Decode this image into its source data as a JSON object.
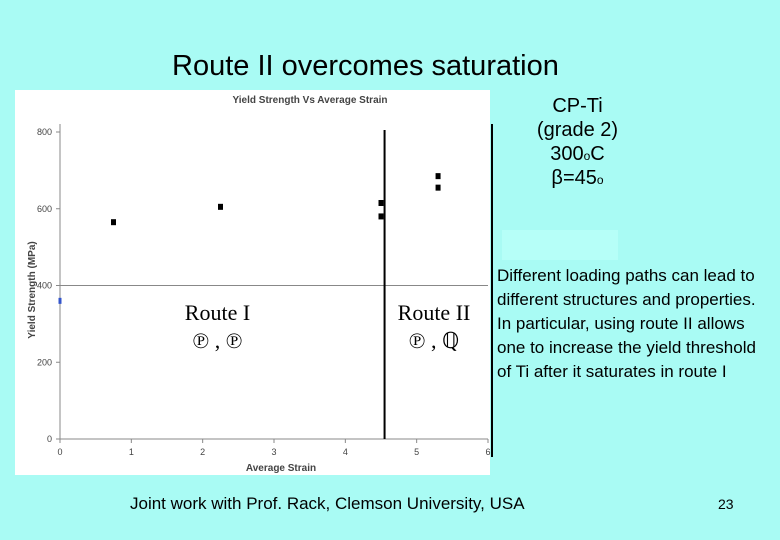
{
  "slide_title": "Route II overcomes saturation",
  "material": {
    "line1": "CP-Ti",
    "line2": "(grade 2)",
    "temp_value": "300",
    "temp_sup": "o",
    "temp_unit": "C",
    "angle_symbol": "β",
    "angle_value": "=45",
    "angle_sup": "o"
  },
  "description": "Different loading paths can lead to different structures and properties. In particular, using route II allows one to increase the yield threshold of Ti after it saturates in route I",
  "footer": "Joint work with Prof. Rack, Clemson University, USA",
  "slide_number": "23",
  "route_labels": {
    "route1": "Route I",
    "route1_sub": "℗ , ℗",
    "route2": "Route II",
    "route2_sub": "℗ , ℚ"
  },
  "chart_data": {
    "type": "scatter",
    "title": "Yield Strength Vs Average Strain",
    "xlabel": "Average Strain",
    "ylabel": "Yield Strength (MPa)",
    "xlim": [
      0,
      6
    ],
    "ylim": [
      0,
      800
    ],
    "xticks": [
      "0",
      "1",
      "2",
      "3",
      "4",
      "5",
      "6"
    ],
    "yticks": [
      "0",
      "200",
      "400",
      "600",
      "800"
    ],
    "series": [
      {
        "name": "Route I",
        "x": [
          0,
          0.75,
          2.25
        ],
        "y": [
          360,
          565,
          605
        ]
      },
      {
        "name": "Route II",
        "x": [
          4.5,
          4.5,
          5.3,
          5.3
        ],
        "y": [
          580,
          615,
          655,
          685
        ]
      }
    ],
    "annotations": [
      {
        "type": "vertical-line",
        "x": 4.55
      }
    ],
    "colors": {
      "background": "#ffffff",
      "axis": "#888888",
      "marker": "#000000",
      "divider": "#000000"
    }
  }
}
